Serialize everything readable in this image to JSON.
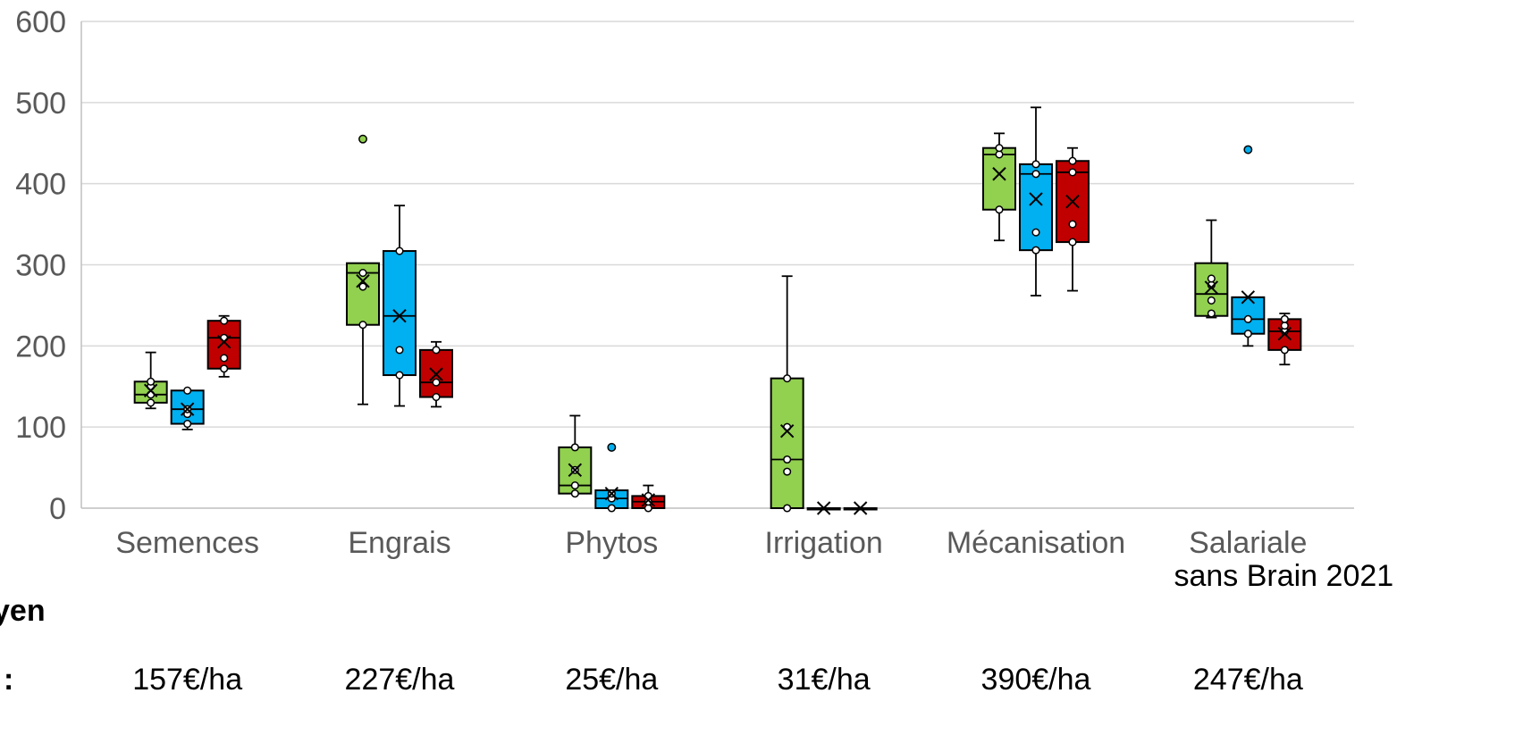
{
  "chart_data": {
    "type": "boxplot",
    "ylim": [
      0,
      600
    ],
    "yticks": [
      0,
      100,
      200,
      300,
      400,
      500,
      600
    ],
    "categories": [
      {
        "line1": "Semences",
        "line2": ""
      },
      {
        "line1": "Engrais",
        "line2": ""
      },
      {
        "line1": "Phytos",
        "line2": ""
      },
      {
        "line1": "Irrigation",
        "line2": ""
      },
      {
        "line1": "Mécanisation",
        "line2": ""
      },
      {
        "line1": "Salariale",
        "line2": "sans Brain 2021"
      }
    ],
    "series": [
      {
        "color": "#92d050",
        "boxes": [
          {
            "min": 123,
            "q1": 130,
            "median": 140,
            "q3": 156,
            "max": 192,
            "mean": 145,
            "points": [
              130,
              140,
              150,
              156
            ]
          },
          {
            "min": 128,
            "q1": 226,
            "median": 290,
            "q3": 302,
            "max": 302,
            "mean": 280,
            "points": [
              226,
              273,
              290
            ],
            "outliers": [
              455
            ]
          },
          {
            "min": 18,
            "q1": 18,
            "median": 28,
            "q3": 75,
            "max": 114,
            "mean": 47,
            "points": [
              18,
              28,
              47,
              75
            ]
          },
          {
            "min": 0,
            "q1": 0,
            "median": 60,
            "q3": 160,
            "max": 286,
            "mean": 95,
            "points": [
              0,
              45,
              60,
              100,
              160
            ]
          },
          {
            "min": 330,
            "q1": 368,
            "median": 436,
            "q3": 444,
            "max": 462,
            "mean": 412,
            "points": [
              368,
              436,
              444
            ]
          },
          {
            "min": 235,
            "q1": 237,
            "median": 264,
            "q3": 302,
            "max": 355,
            "mean": 272,
            "points": [
              240,
              256,
              275,
              283
            ]
          }
        ]
      },
      {
        "color": "#00b0f0",
        "boxes": [
          {
            "min": 97,
            "q1": 104,
            "median": 122,
            "q3": 145,
            "max": 145,
            "mean": 122,
            "points": [
              104,
              116,
              122,
              145
            ]
          },
          {
            "min": 126,
            "q1": 164,
            "median": 237,
            "q3": 317,
            "max": 373,
            "mean": 237,
            "points": [
              164,
              195,
              317
            ]
          },
          {
            "min": 0,
            "q1": 0,
            "median": 12,
            "q3": 22,
            "max": 22,
            "mean": 18,
            "points": [
              0,
              12,
              18
            ],
            "outliers": [
              75
            ]
          },
          {
            "min": 0,
            "q1": 0,
            "median": 0,
            "q3": 0,
            "max": 0,
            "mean": 0,
            "points": []
          },
          {
            "min": 262,
            "q1": 318,
            "median": 412,
            "q3": 424,
            "max": 494,
            "mean": 381,
            "points": [
              318,
              340,
              412,
              424
            ]
          },
          {
            "min": 200,
            "q1": 215,
            "median": 233,
            "q3": 260,
            "max": 260,
            "mean": 260,
            "points": [
              215,
              233
            ],
            "outliers": [
              442
            ]
          }
        ]
      },
      {
        "color": "#c00000",
        "boxes": [
          {
            "min": 162,
            "q1": 172,
            "median": 210,
            "q3": 231,
            "max": 237,
            "mean": 205,
            "points": [
              172,
              185,
              210,
              231
            ]
          },
          {
            "min": 125,
            "q1": 137,
            "median": 155,
            "q3": 195,
            "max": 205,
            "mean": 165,
            "points": [
              137,
              155,
              195
            ]
          },
          {
            "min": 0,
            "q1": 0,
            "median": 8,
            "q3": 15,
            "max": 28,
            "mean": 10,
            "points": [
              0,
              8,
              15
            ]
          },
          {
            "min": 0,
            "q1": 0,
            "median": 0,
            "q3": 0,
            "max": 0,
            "mean": 0,
            "points": []
          },
          {
            "min": 268,
            "q1": 328,
            "median": 414,
            "q3": 428,
            "max": 444,
            "mean": 378,
            "points": [
              328,
              350,
              414,
              428
            ]
          },
          {
            "min": 177,
            "q1": 195,
            "median": 218,
            "q3": 233,
            "max": 240,
            "mean": 215,
            "points": [
              195,
              218,
              225,
              233
            ]
          }
        ]
      }
    ]
  },
  "footer": {
    "label_line1": "yen",
    "label_line2": ":",
    "values": [
      "157€/ha",
      "227€/ha",
      "25€/ha",
      "31€/ha",
      "390€/ha",
      "247€/ha"
    ]
  }
}
